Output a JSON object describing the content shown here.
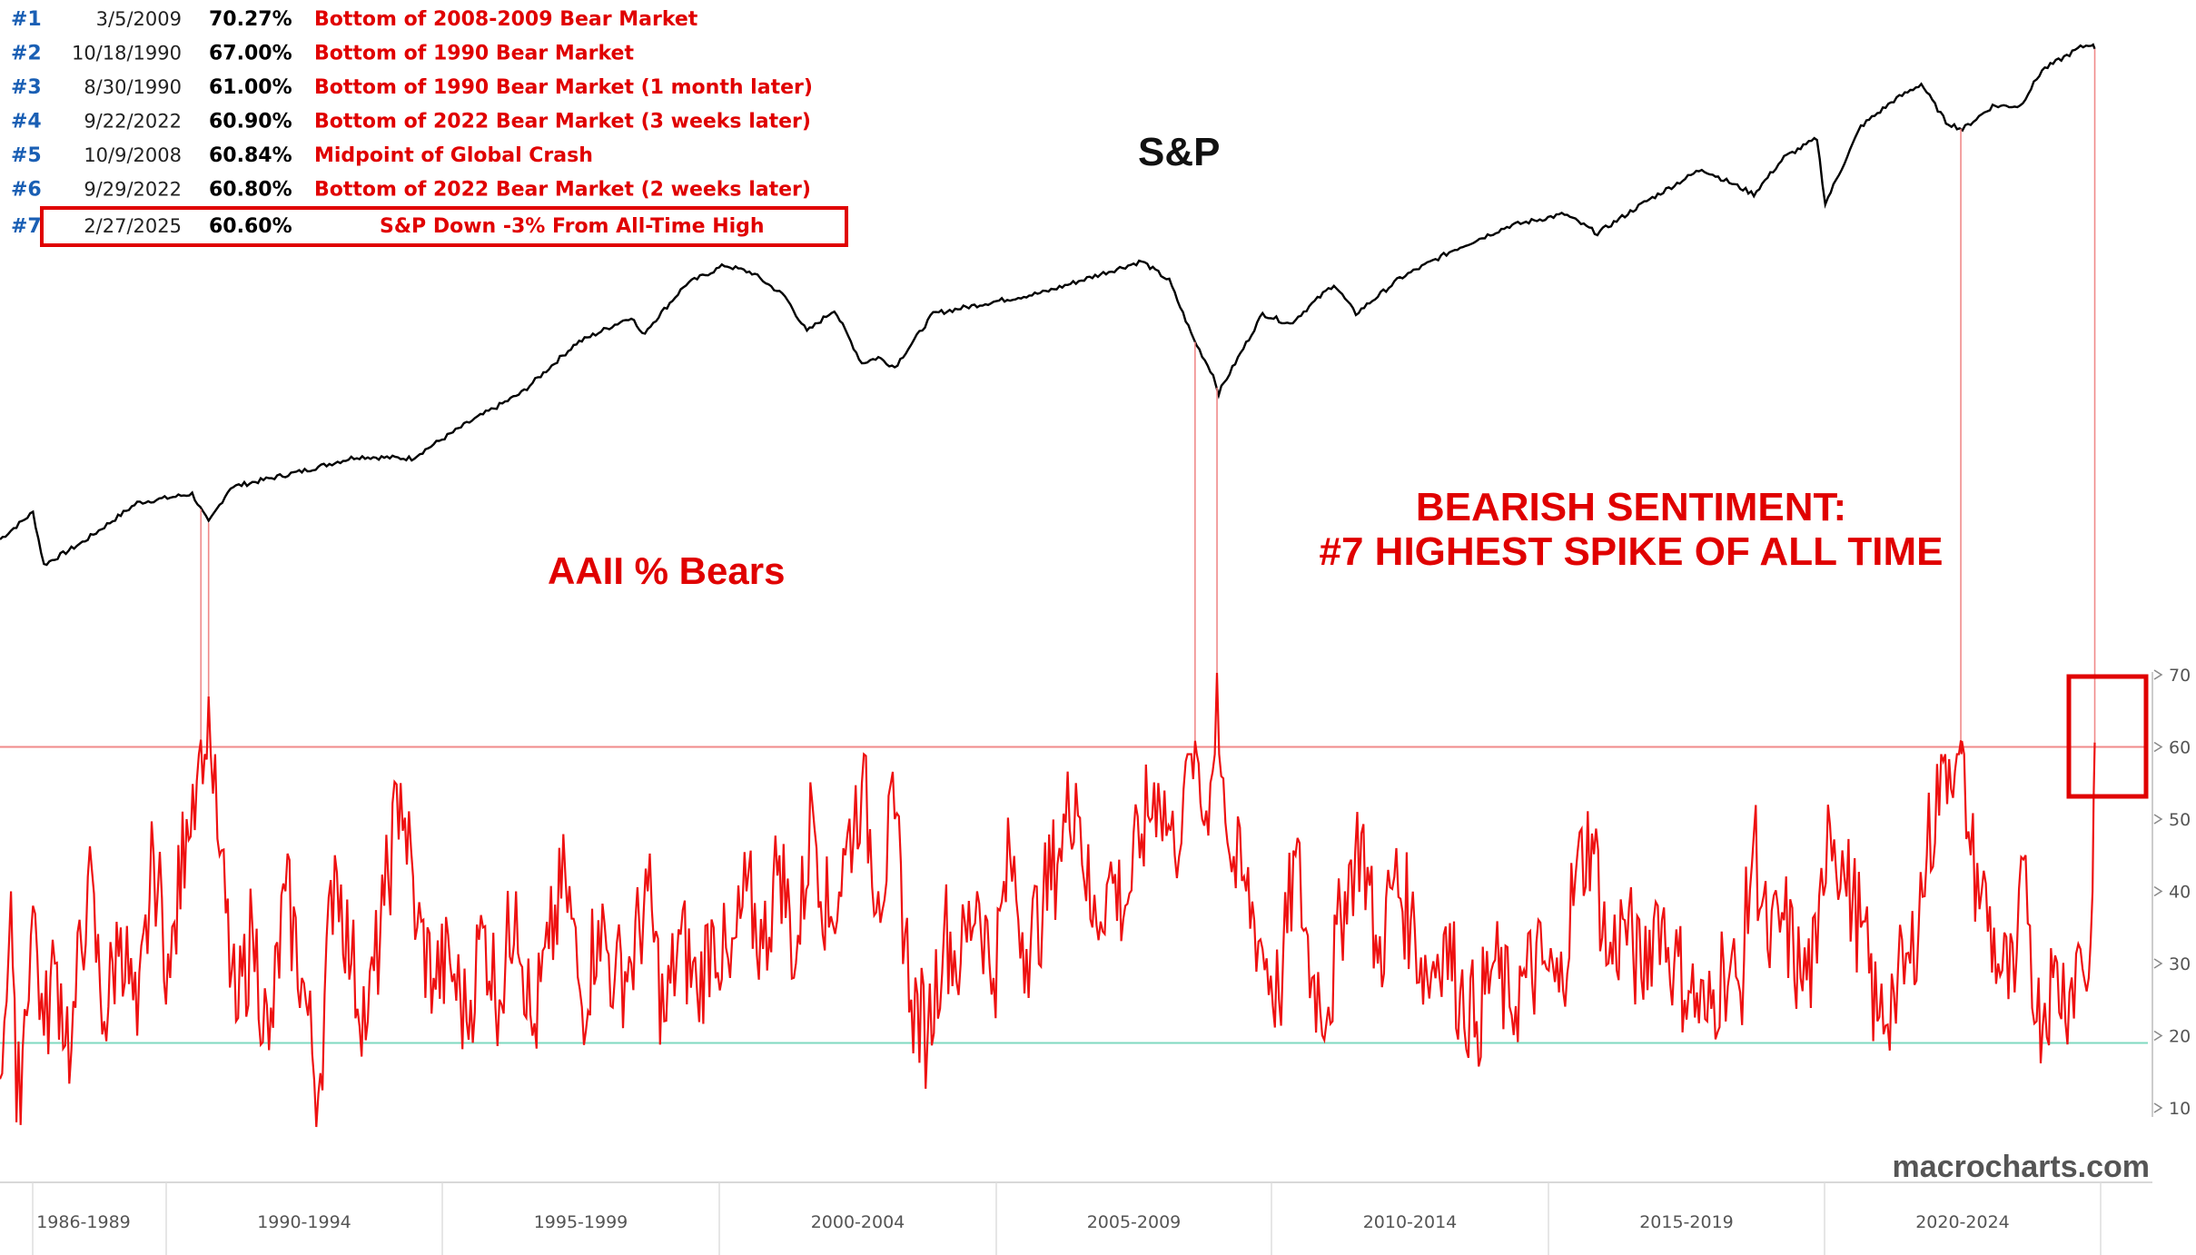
{
  "colors": {
    "sp_line": "#000000",
    "bears_line": "#ee1111",
    "threshold_line": "#f08a8a",
    "baseline_line": "#7fd8c0",
    "rank_blue": "#1a5fb4",
    "highlight_red": "#e00000"
  },
  "labels": {
    "sp_title": "S&P",
    "bears_title": "AAII % Bears",
    "headline_1": "BEARISH SENTIMENT:",
    "headline_2": "#7 HIGHEST SPIKE OF ALL TIME",
    "watermark": "macrocharts.com"
  },
  "table": [
    {
      "rank": "#1",
      "date": "3/5/2009",
      "pct": "70.27%",
      "desc": "Bottom of 2008-2009 Bear Market"
    },
    {
      "rank": "#2",
      "date": "10/18/1990",
      "pct": "67.00%",
      "desc": "Bottom of 1990 Bear Market"
    },
    {
      "rank": "#3",
      "date": "8/30/1990",
      "pct": "61.00%",
      "desc": "Bottom of 1990 Bear Market (1 month later)"
    },
    {
      "rank": "#4",
      "date": "9/22/2022",
      "pct": "60.90%",
      "desc": "Bottom of 2022 Bear Market (3 weeks later)"
    },
    {
      "rank": "#5",
      "date": "10/9/2008",
      "pct": "60.84%",
      "desc": "Midpoint of Global Crash"
    },
    {
      "rank": "#6",
      "date": "9/29/2022",
      "pct": "60.80%",
      "desc": "Bottom of 2022 Bear Market (2 weeks later)"
    },
    {
      "rank": "#7",
      "date": "2/27/2025",
      "pct": "60.60%",
      "desc": "S&P Down -3% From All-Time High"
    }
  ],
  "chart_data": {
    "type": "line",
    "x_ticks": [
      "1986-1989",
      "1990-1994",
      "1995-1999",
      "2000-2004",
      "2005-2009",
      "2010-2014",
      "2015-2019",
      "2020-2024"
    ],
    "y_ticks": [
      10,
      20,
      30,
      40,
      50,
      60,
      70
    ],
    "ylim": [
      5,
      72
    ],
    "xlim": [
      1987.0,
      2025.3
    ],
    "threshold": 60,
    "baseline": 19,
    "series": [
      {
        "name": "S&P",
        "scale": "log",
        "points": [
          [
            1987.0,
            270
          ],
          [
            1987.6,
            320
          ],
          [
            1987.8,
            230
          ],
          [
            1988.5,
            265
          ],
          [
            1989.5,
            340
          ],
          [
            1990.5,
            360
          ],
          [
            1990.8,
            300
          ],
          [
            1991.2,
            375
          ],
          [
            1992.5,
            415
          ],
          [
            1993.5,
            455
          ],
          [
            1994.5,
            450
          ],
          [
            1995.5,
            560
          ],
          [
            1996.5,
            680
          ],
          [
            1997.5,
            930
          ],
          [
            1998.5,
            1100
          ],
          [
            1998.7,
            980
          ],
          [
            1999.5,
            1350
          ],
          [
            2000.2,
            1520
          ],
          [
            2000.7,
            1450
          ],
          [
            2001.3,
            1250
          ],
          [
            2001.7,
            1000
          ],
          [
            2002.2,
            1150
          ],
          [
            2002.7,
            820
          ],
          [
            2003.0,
            850
          ],
          [
            2003.3,
            800
          ],
          [
            2004.0,
            1120
          ],
          [
            2005.0,
            1200
          ],
          [
            2006.0,
            1280
          ],
          [
            2007.0,
            1430
          ],
          [
            2007.8,
            1560
          ],
          [
            2008.3,
            1380
          ],
          [
            2008.75,
            950
          ],
          [
            2009.1,
            760
          ],
          [
            2009.2,
            680
          ],
          [
            2010.0,
            1120
          ],
          [
            2010.5,
            1050
          ],
          [
            2011.3,
            1350
          ],
          [
            2011.7,
            1120
          ],
          [
            2012.5,
            1400
          ],
          [
            2013.5,
            1680
          ],
          [
            2014.5,
            1950
          ],
          [
            2015.5,
            2100
          ],
          [
            2016.1,
            1860
          ],
          [
            2017.0,
            2280
          ],
          [
            2018.0,
            2790
          ],
          [
            2018.95,
            2380
          ],
          [
            2019.5,
            3000
          ],
          [
            2020.1,
            3380
          ],
          [
            2020.25,
            2240
          ],
          [
            2020.9,
            3650
          ],
          [
            2021.5,
            4300
          ],
          [
            2022.0,
            4770
          ],
          [
            2022.45,
            3750
          ],
          [
            2022.75,
            3580
          ],
          [
            2023.3,
            4150
          ],
          [
            2023.8,
            4150
          ],
          [
            2024.2,
            5200
          ],
          [
            2024.9,
            6000
          ],
          [
            2025.1,
            6140
          ],
          [
            2025.16,
            5950
          ]
        ]
      },
      {
        "name": "AAII % Bears",
        "points": [
          [
            1987.0,
            14
          ],
          [
            1987.2,
            40
          ],
          [
            1987.3,
            8
          ],
          [
            1987.6,
            38
          ],
          [
            1987.8,
            20
          ],
          [
            1988.0,
            30
          ],
          [
            1988.3,
            18
          ],
          [
            1988.6,
            42
          ],
          [
            1988.9,
            22
          ],
          [
            1989.2,
            35
          ],
          [
            1989.5,
            20
          ],
          [
            1989.8,
            45
          ],
          [
            1990.1,
            28
          ],
          [
            1990.4,
            50
          ],
          [
            1990.66,
            61
          ],
          [
            1990.8,
            67
          ],
          [
            1991.0,
            45
          ],
          [
            1991.3,
            22
          ],
          [
            1991.6,
            35
          ],
          [
            1991.9,
            18
          ],
          [
            1992.2,
            40
          ],
          [
            1992.5,
            28
          ],
          [
            1992.8,
            12
          ],
          [
            1993.1,
            45
          ],
          [
            1993.4,
            30
          ],
          [
            1993.7,
            22
          ],
          [
            1994.0,
            38
          ],
          [
            1994.3,
            55
          ],
          [
            1994.6,
            35
          ],
          [
            1994.9,
            28
          ],
          [
            1995.2,
            30
          ],
          [
            1995.5,
            22
          ],
          [
            1995.8,
            35
          ],
          [
            1996.1,
            25
          ],
          [
            1996.4,
            40
          ],
          [
            1996.7,
            20
          ],
          [
            1997.0,
            32
          ],
          [
            1997.3,
            42
          ],
          [
            1997.6,
            24
          ],
          [
            1997.9,
            36
          ],
          [
            1998.2,
            28
          ],
          [
            1998.5,
            30
          ],
          [
            1998.8,
            40
          ],
          [
            1999.1,
            22
          ],
          [
            1999.4,
            34
          ],
          [
            1999.7,
            26
          ],
          [
            2000.0,
            35
          ],
          [
            2000.3,
            28
          ],
          [
            2000.6,
            40
          ],
          [
            2000.9,
            32
          ],
          [
            2001.2,
            45
          ],
          [
            2001.5,
            30
          ],
          [
            2001.8,
            52
          ],
          [
            2002.1,
            35
          ],
          [
            2002.4,
            45
          ],
          [
            2002.7,
            55
          ],
          [
            2003.0,
            40
          ],
          [
            2003.3,
            50
          ],
          [
            2003.6,
            25
          ],
          [
            2003.9,
            20
          ],
          [
            2004.2,
            35
          ],
          [
            2004.5,
            30
          ],
          [
            2004.8,
            40
          ],
          [
            2005.1,
            28
          ],
          [
            2005.4,
            45
          ],
          [
            2005.7,
            32
          ],
          [
            2006.0,
            38
          ],
          [
            2006.3,
            46
          ],
          [
            2006.6,
            55
          ],
          [
            2006.9,
            35
          ],
          [
            2007.2,
            42
          ],
          [
            2007.5,
            38
          ],
          [
            2007.8,
            48
          ],
          [
            2008.1,
            55
          ],
          [
            2008.4,
            45
          ],
          [
            2008.6,
            58
          ],
          [
            2008.77,
            60.84
          ],
          [
            2008.9,
            50
          ],
          [
            2009.05,
            55
          ],
          [
            2009.17,
            70.27
          ],
          [
            2009.4,
            45
          ],
          [
            2009.7,
            40
          ],
          [
            2010.0,
            32
          ],
          [
            2010.3,
            25
          ],
          [
            2010.6,
            45
          ],
          [
            2010.9,
            28
          ],
          [
            2011.2,
            24
          ],
          [
            2011.5,
            40
          ],
          [
            2011.8,
            48
          ],
          [
            2012.1,
            30
          ],
          [
            2012.4,
            42
          ],
          [
            2012.7,
            36
          ],
          [
            2013.0,
            28
          ],
          [
            2013.3,
            34
          ],
          [
            2013.6,
            26
          ],
          [
            2013.9,
            22
          ],
          [
            2014.2,
            30
          ],
          [
            2014.5,
            24
          ],
          [
            2014.8,
            28
          ],
          [
            2015.1,
            30
          ],
          [
            2015.4,
            26
          ],
          [
            2015.7,
            42
          ],
          [
            2016.0,
            48
          ],
          [
            2016.3,
            30
          ],
          [
            2016.6,
            36
          ],
          [
            2016.9,
            28
          ],
          [
            2017.2,
            38
          ],
          [
            2017.5,
            30
          ],
          [
            2017.8,
            26
          ],
          [
            2018.1,
            22
          ],
          [
            2018.4,
            30
          ],
          [
            2018.7,
            26
          ],
          [
            2018.95,
            48
          ],
          [
            2019.2,
            32
          ],
          [
            2019.5,
            36
          ],
          [
            2019.8,
            28
          ],
          [
            2020.1,
            30
          ],
          [
            2020.3,
            52
          ],
          [
            2020.6,
            42
          ],
          [
            2020.9,
            35
          ],
          [
            2021.2,
            22
          ],
          [
            2021.5,
            26
          ],
          [
            2021.8,
            30
          ],
          [
            2022.1,
            45
          ],
          [
            2022.4,
            58
          ],
          [
            2022.72,
            60.9
          ],
          [
            2022.74,
            60.8
          ],
          [
            2022.9,
            45
          ],
          [
            2023.1,
            40
          ],
          [
            2023.4,
            30
          ],
          [
            2023.7,
            26
          ],
          [
            2023.9,
            45
          ],
          [
            2024.1,
            22
          ],
          [
            2024.4,
            28
          ],
          [
            2024.7,
            26
          ],
          [
            2024.9,
            32
          ],
          [
            2025.05,
            28
          ],
          [
            2025.12,
            40
          ],
          [
            2025.16,
            60.6
          ]
        ]
      }
    ]
  }
}
